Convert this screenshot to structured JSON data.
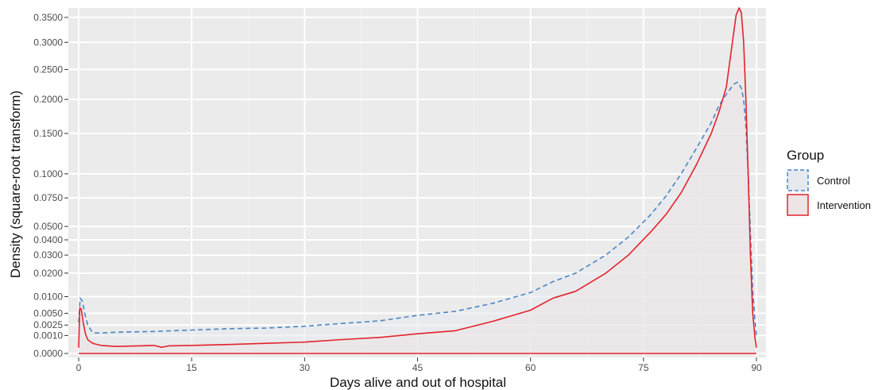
{
  "chart_data": {
    "type": "area",
    "xlabel": "Days alive and out of hospital",
    "ylabel": "Density (square-root transform)",
    "y_scale": "sqrt",
    "xlim": [
      0,
      90
    ],
    "ylim": [
      0,
      0.37
    ],
    "x_ticks": [
      0,
      15,
      30,
      45,
      60,
      75,
      90
    ],
    "x_tick_labels": [
      "0",
      "15",
      "30",
      "45",
      "60",
      "75",
      "90"
    ],
    "y_ticks": [
      0,
      0.001,
      0.0025,
      0.005,
      0.01,
      0.02,
      0.03,
      0.04,
      0.05,
      0.075,
      0.1,
      0.15,
      0.2,
      0.25,
      0.3,
      0.35
    ],
    "y_tick_labels": [
      "0.0000",
      "0.0010",
      "0.0025",
      "0.0050",
      "0.0100",
      "0.0200",
      "0.0300",
      "0.0400",
      "0.0500",
      "0.0750",
      "0.1000",
      "0.1500",
      "0.2000",
      "0.2500",
      "0.3000",
      "0.3500"
    ],
    "grid": true,
    "legend": {
      "title": "Group",
      "position": "right",
      "entries": [
        "Control",
        "Intervention"
      ]
    },
    "series": [
      {
        "name": "Control",
        "color": "#4a86c5",
        "fill": "#e6e9ee",
        "line_style": "dashed",
        "x": [
          0,
          0.2,
          0.5,
          0.8,
          1.2,
          1.8,
          2.2,
          3,
          5,
          10,
          15,
          20,
          25,
          30,
          35,
          40,
          45,
          50,
          55,
          60,
          63,
          66,
          70,
          73,
          76,
          78,
          80,
          82,
          84,
          85,
          86,
          87,
          87.5,
          88,
          88.3,
          88.6,
          88.9,
          89.2,
          89.5,
          89.8,
          90
        ],
        "y": [
          0.003,
          0.0095,
          0.0085,
          0.005,
          0.0025,
          0.0014,
          0.0013,
          0.0013,
          0.0014,
          0.0015,
          0.0017,
          0.0019,
          0.002,
          0.0023,
          0.0028,
          0.0033,
          0.0045,
          0.0055,
          0.0078,
          0.0115,
          0.016,
          0.02,
          0.03,
          0.042,
          0.06,
          0.077,
          0.1,
          0.13,
          0.165,
          0.19,
          0.208,
          0.225,
          0.228,
          0.218,
          0.2,
          0.16,
          0.1,
          0.045,
          0.012,
          0.0035,
          0.001
        ]
      },
      {
        "name": "Intervention",
        "color": "#e3232c",
        "fill": "#ece4e5",
        "line_style": "solid",
        "x": [
          0,
          0.15,
          0.35,
          0.6,
          0.9,
          1.2,
          1.6,
          2,
          3,
          5,
          8,
          10,
          11,
          12,
          15,
          20,
          25,
          30,
          35,
          40,
          45,
          50,
          55,
          60,
          63,
          66,
          70,
          73,
          76,
          78,
          80,
          82,
          84,
          85,
          86,
          86.8,
          87.3,
          87.7,
          88,
          88.3,
          88.6,
          88.9,
          89.2,
          89.5,
          89.8,
          90
        ],
        "y": [
          0.0001,
          0.0065,
          0.006,
          0.003,
          0.0012,
          0.0006,
          0.0004,
          0.0003,
          0.0002,
          0.00015,
          0.00018,
          0.0002,
          0.00012,
          0.00018,
          0.0002,
          0.00025,
          0.00032,
          0.0004,
          0.0006,
          0.0008,
          0.0012,
          0.0016,
          0.0032,
          0.0058,
          0.0095,
          0.012,
          0.02,
          0.03,
          0.046,
          0.06,
          0.08,
          0.11,
          0.15,
          0.18,
          0.22,
          0.3,
          0.355,
          0.37,
          0.36,
          0.3,
          0.2,
          0.1,
          0.03,
          0.005,
          0.0008,
          0.0001
        ]
      }
    ]
  }
}
